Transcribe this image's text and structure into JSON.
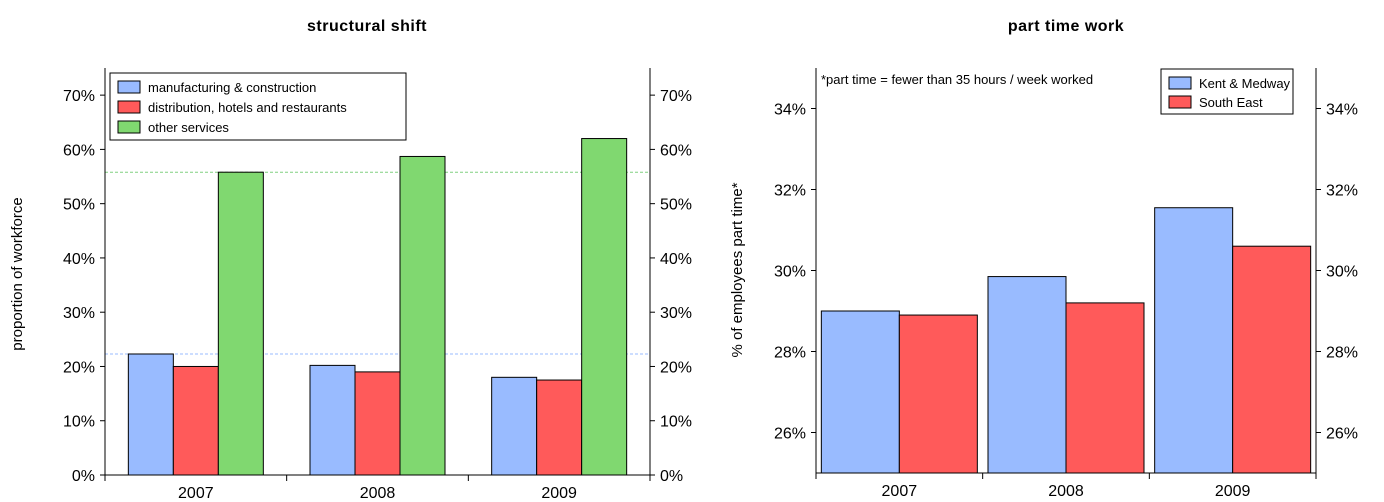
{
  "chart_data": [
    {
      "type": "bar",
      "title": "structural shift",
      "xlabel": "",
      "ylabel": "proportion of workforce",
      "categories": [
        "2007",
        "2008",
        "2009"
      ],
      "ylim": [
        0,
        75
      ],
      "yticks": [
        0,
        10,
        20,
        30,
        40,
        50,
        60,
        70
      ],
      "ytick_labels": [
        "0%",
        "10%",
        "20%",
        "30%",
        "40%",
        "50%",
        "60%",
        "70%"
      ],
      "right_axis": true,
      "reference_lines": [
        {
          "value": 55.8,
          "color": "#80d080"
        },
        {
          "value": 22.3,
          "color": "#99bbff"
        }
      ],
      "legend_position": "top-left",
      "series": [
        {
          "name": "manufacturing & construction",
          "color": "#99bbff",
          "values": [
            22.3,
            20.2,
            18.0
          ]
        },
        {
          "name": "distribution, hotels and restaurants",
          "color": "#ff5a5a",
          "values": [
            20.0,
            19.0,
            17.5
          ]
        },
        {
          "name": "other services",
          "color": "#80d870",
          "values": [
            55.8,
            58.7,
            62.0
          ]
        }
      ]
    },
    {
      "type": "bar",
      "title": "part time work",
      "xlabel": "",
      "ylabel": "% of employees part time*",
      "categories": [
        "2007",
        "2008",
        "2009"
      ],
      "ylim": [
        25,
        35
      ],
      "yticks": [
        26,
        28,
        30,
        32,
        34
      ],
      "ytick_labels": [
        "26%",
        "28%",
        "30%",
        "32%",
        "34%"
      ],
      "right_axis": true,
      "note": "*part time = fewer than 35 hours / week worked",
      "legend_position": "top-right",
      "series": [
        {
          "name": "Kent & Medway",
          "color": "#99bbff",
          "values": [
            29.0,
            29.85,
            31.55
          ]
        },
        {
          "name": "South East",
          "color": "#ff5a5a",
          "values": [
            28.9,
            29.2,
            30.6
          ]
        }
      ]
    }
  ]
}
